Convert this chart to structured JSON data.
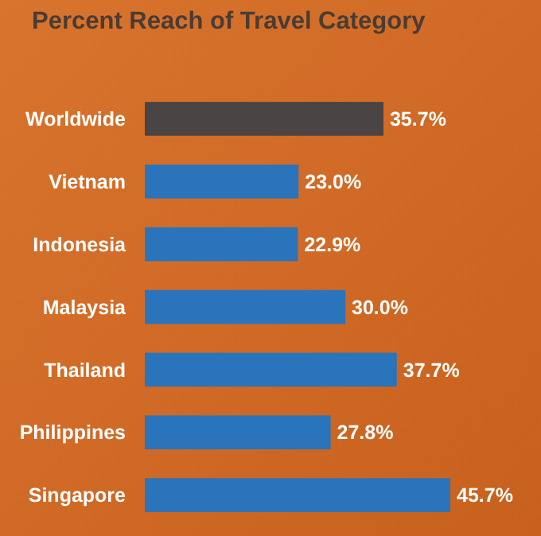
{
  "chart_data": {
    "type": "bar",
    "orientation": "horizontal",
    "title": "Percent Reach of Travel Category",
    "categories": [
      "Worldwide",
      "Vietnam",
      "Indonesia",
      "Malaysia",
      "Thailand",
      "Philippines",
      "Singapore"
    ],
    "values": [
      35.7,
      23.0,
      22.9,
      30.0,
      37.7,
      27.8,
      45.7
    ],
    "colors": [
      "#4a4444",
      "#2a74bb",
      "#2a74bb",
      "#2a74bb",
      "#2a74bb",
      "#2a74bb",
      "#2a74bb"
    ],
    "value_labels": [
      "35.7%",
      "23.0%",
      "22.9%",
      "30.0%",
      "37.7%",
      "27.8%",
      "45.7%"
    ],
    "tick_labels": "y"
  }
}
